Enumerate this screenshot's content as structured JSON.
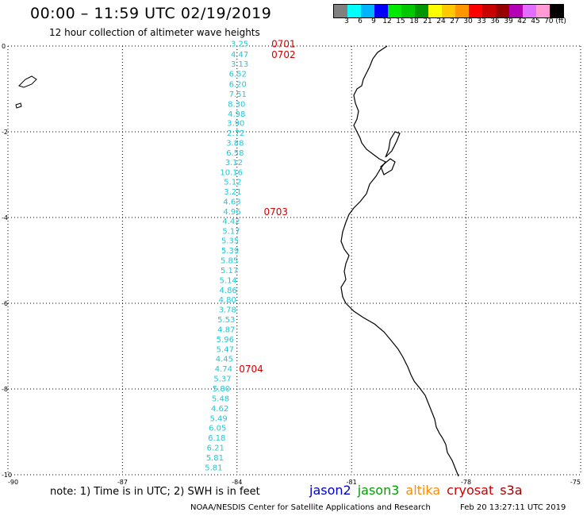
{
  "header": {
    "title": "00:00 – 11:59 UTC 02/19/2019",
    "subtitle": "12 hour collection of altimeter wave heights"
  },
  "colorbar": {
    "colors": [
      "#808080",
      "#00ffff",
      "#00b4ff",
      "#0000ff",
      "#00e800",
      "#00c800",
      "#009600",
      "#ffff00",
      "#ffc800",
      "#ff9600",
      "#ff0000",
      "#c80000",
      "#960000",
      "#b400b4",
      "#e16eff",
      "#ff9bd2",
      "#000000"
    ],
    "ticks": [
      "3",
      "6",
      "9",
      "12",
      "15",
      "18",
      "21",
      "24",
      "27",
      "30",
      "33",
      "36",
      "39",
      "42",
      "45",
      "70 (ft)"
    ]
  },
  "map": {
    "lon_ticks": [
      "-90",
      "-87",
      "-84",
      "-81",
      "-78",
      "-75"
    ],
    "lat_ticks": [
      "0",
      "-2",
      "-4",
      "-6",
      "-8",
      "-10"
    ],
    "lon_range": [
      -90,
      -75
    ],
    "lat_range": [
      0,
      -10
    ],
    "track": [
      {
        "text": "3.25",
        "lon": -83.7,
        "lat": 0.05
      },
      {
        "text": "4.47",
        "lon": -83.7,
        "lat": -0.2
      },
      {
        "text": "3.13",
        "lon": -83.7,
        "lat": -0.43
      },
      {
        "text": "6.52",
        "lon": -83.75,
        "lat": -0.66
      },
      {
        "text": "6.20",
        "lon": -83.75,
        "lat": -0.9
      },
      {
        "text": "7.51",
        "lon": -83.75,
        "lat": -1.13
      },
      {
        "text": "8.30",
        "lon": -83.78,
        "lat": -1.36
      },
      {
        "text": "4.98",
        "lon": -83.78,
        "lat": -1.59
      },
      {
        "text": "3.90",
        "lon": -83.8,
        "lat": -1.81
      },
      {
        "text": "2.72",
        "lon": -83.8,
        "lat": -2.04
      },
      {
        "text": "3.88",
        "lon": -83.82,
        "lat": -2.27
      },
      {
        "text": "6.58",
        "lon": -83.82,
        "lat": -2.5
      },
      {
        "text": "3.12",
        "lon": -83.85,
        "lat": -2.72
      },
      {
        "text": "10.16",
        "lon": -83.85,
        "lat": -2.95,
        "color": "#0000cc"
      },
      {
        "text": "5.12",
        "lon": -83.88,
        "lat": -3.18
      },
      {
        "text": "3.21",
        "lon": -83.88,
        "lat": -3.41
      },
      {
        "text": "4.63",
        "lon": -83.9,
        "lat": -3.64
      },
      {
        "text": "4.96",
        "lon": -83.9,
        "lat": -3.87
      },
      {
        "text": "4.42",
        "lon": -83.92,
        "lat": -4.09
      },
      {
        "text": "5.17",
        "lon": -83.92,
        "lat": -4.32
      },
      {
        "text": "5.35",
        "lon": -83.95,
        "lat": -4.55
      },
      {
        "text": "5.39",
        "lon": -83.95,
        "lat": -4.78
      },
      {
        "text": "5.85",
        "lon": -83.97,
        "lat": -5.01
      },
      {
        "text": "5.17",
        "lon": -83.97,
        "lat": -5.24
      },
      {
        "text": "5.14",
        "lon": -84.0,
        "lat": -5.47
      },
      {
        "text": "4.86",
        "lon": -84.0,
        "lat": -5.7
      },
      {
        "text": "4.80",
        "lon": -84.02,
        "lat": -5.93
      },
      {
        "text": "3.78",
        "lon": -84.02,
        "lat": -6.16
      },
      {
        "text": "5.53",
        "lon": -84.05,
        "lat": -6.39
      },
      {
        "text": "4.87",
        "lon": -84.05,
        "lat": -6.62
      },
      {
        "text": "5.96",
        "lon": -84.08,
        "lat": -6.85
      },
      {
        "text": "5.47",
        "lon": -84.08,
        "lat": -7.08
      },
      {
        "text": "4.45",
        "lon": -84.1,
        "lat": -7.31
      },
      {
        "text": "4.74",
        "lon": -84.12,
        "lat": -7.54
      },
      {
        "text": "5.37",
        "lon": -84.15,
        "lat": -7.77
      },
      {
        "text": "5.80",
        "lon": -84.18,
        "lat": -8.0
      },
      {
        "text": "5.48",
        "lon": -84.2,
        "lat": -8.23
      },
      {
        "text": "4.62",
        "lon": -84.22,
        "lat": -8.46
      },
      {
        "text": "5.49",
        "lon": -84.25,
        "lat": -8.69
      },
      {
        "text": "6.05",
        "lon": -84.28,
        "lat": -8.92
      },
      {
        "text": "6.18",
        "lon": -84.3,
        "lat": -9.15
      },
      {
        "text": "6.21",
        "lon": -84.33,
        "lat": -9.38
      },
      {
        "text": "5.81",
        "lon": -84.35,
        "lat": -9.61
      },
      {
        "text": "5.81",
        "lon": -84.38,
        "lat": -9.84
      }
    ],
    "time_labels": [
      {
        "text": "0701",
        "lon": -83.1,
        "lat": 0.05
      },
      {
        "text": "0702",
        "lon": -83.1,
        "lat": -0.2
      },
      {
        "text": "0703",
        "lon": -83.3,
        "lat": -3.87
      },
      {
        "text": "0704",
        "lon": -83.95,
        "lat": -7.54
      }
    ]
  },
  "note": "note:  1) Time is in UTC;  2) SWH is in feet",
  "satellites": [
    {
      "name": "jason2",
      "color": "#0000cc"
    },
    {
      "name": "jason3",
      "color": "#00a000"
    },
    {
      "name": "altika",
      "color": "#ff8c00"
    },
    {
      "name": "cryosat",
      "color": "#cc0000"
    },
    {
      "name": "s3a",
      "color": "#990000"
    }
  ],
  "credit": "NOAA/NESDIS Center for Satellite Applications and Research",
  "timestamp": "Feb 20 13:27:11 UTC 2019"
}
